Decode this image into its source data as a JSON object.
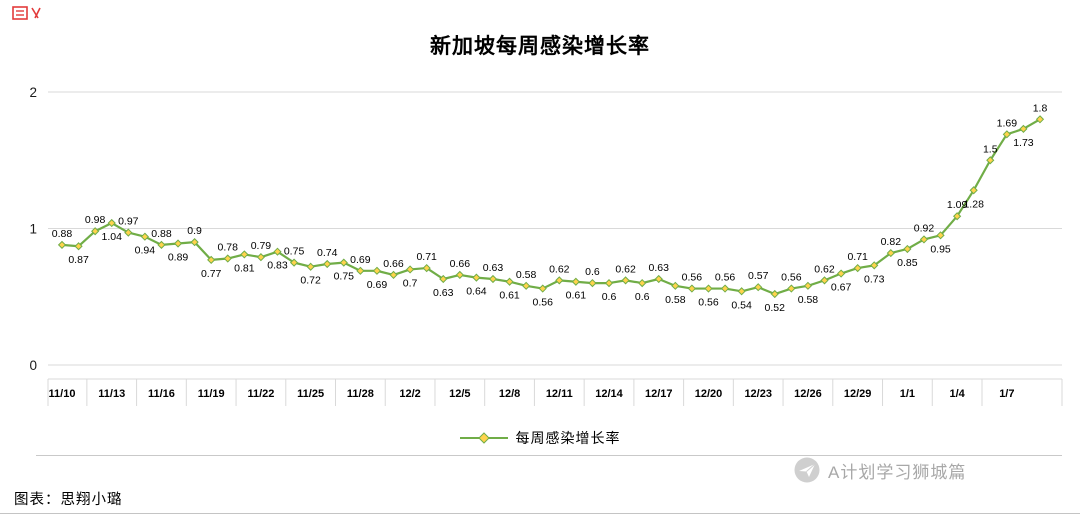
{
  "page": {
    "footer": {
      "label": "图表：思翔小璐"
    },
    "watermark": {
      "text": "A计划学习狮城篇"
    }
  },
  "chart_data": {
    "type": "line",
    "title": "新加坡每周感染增长率",
    "legend_position": "bottom",
    "grid": true,
    "ylim": [
      0,
      2
    ],
    "y_ticks": [
      0,
      1,
      2
    ],
    "x_tick_labels": [
      "11/10",
      "11/13",
      "11/16",
      "11/19",
      "11/22",
      "11/25",
      "11/28",
      "12/2",
      "12/5",
      "12/8",
      "12/11",
      "12/14",
      "12/17",
      "12/20",
      "12/23",
      "12/26",
      "12/29",
      "1/1",
      "1/4",
      "1/7"
    ],
    "points_per_tick": 3,
    "series": [
      {
        "name": "每周感染增长率",
        "values": [
          0.88,
          0.87,
          0.98,
          1.04,
          0.97,
          0.94,
          0.88,
          0.89,
          0.9,
          0.77,
          0.78,
          0.81,
          0.79,
          0.83,
          0.75,
          0.72,
          0.74,
          0.75,
          0.69,
          0.69,
          0.66,
          0.7,
          0.71,
          0.63,
          0.66,
          0.64,
          0.63,
          0.61,
          0.58,
          0.56,
          0.62,
          0.61,
          0.6,
          0.6,
          0.62,
          0.6,
          0.63,
          0.58,
          0.56,
          0.56,
          0.56,
          0.54,
          0.57,
          0.52,
          0.56,
          0.58,
          0.62,
          0.67,
          0.71,
          0.73,
          0.82,
          0.85,
          0.92,
          0.95,
          1.09,
          1.28,
          1.5,
          1.69,
          1.73,
          1.8
        ]
      }
    ],
    "data_labels": true,
    "label_side_overrides": {
      "57": "above",
      "58": "below",
      "59": "above"
    },
    "colors": {
      "line": "#70AD47",
      "marker_fill": "#FFD34D",
      "marker_stroke": "#70AD47",
      "grid": "#D9D9D9",
      "label": "#000000",
      "corner_mark": "#E23B3B",
      "watermark": "#A8A8A8"
    }
  }
}
